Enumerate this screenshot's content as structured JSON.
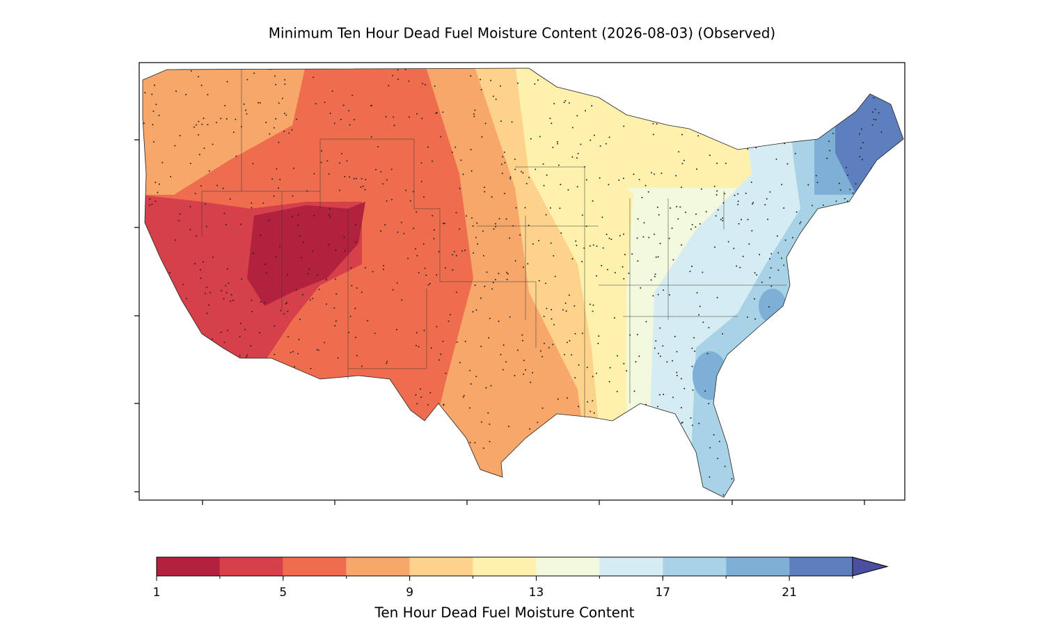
{
  "title": "Minimum Ten Hour Dead Fuel Moisture Content (2026-08-03) (Observed)",
  "colorbar": {
    "label": "Ten Hour Dead Fuel Moisture Content",
    "levels": [
      1,
      3,
      5,
      7,
      9,
      11,
      13,
      15,
      17,
      19,
      21,
      23
    ],
    "colors": [
      "#b2213e",
      "#d6404a",
      "#ef6d4f",
      "#f8a76a",
      "#fdd28a",
      "#fef1ae",
      "#f3f9dd",
      "#d6ecf3",
      "#a8d3e6",
      "#7eafd4",
      "#5e7fbd"
    ],
    "extend_color": "#4a4fa0",
    "ticks": [
      1,
      5,
      9,
      13,
      17,
      21
    ]
  }
}
